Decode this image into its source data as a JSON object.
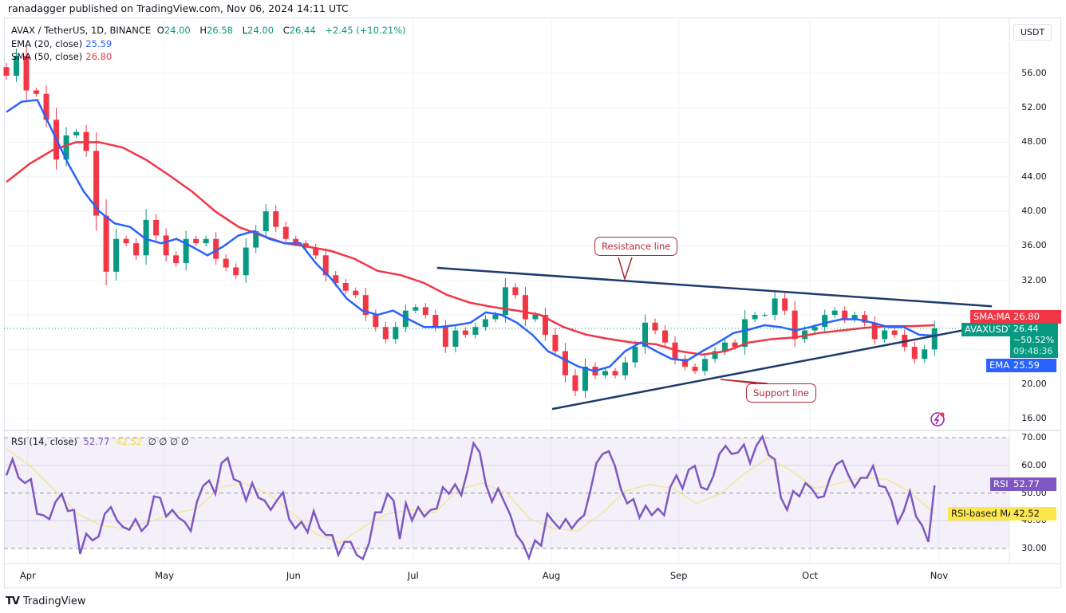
{
  "header": {
    "published": "ranadagger published on TradingView.com, Nov 06, 2024 14:11 UTC"
  },
  "legend": {
    "symbol": "AVAX / TetherUS, 1D, BINANCE",
    "o_label": "O",
    "o": "24.00",
    "h_label": "H",
    "h": "26.58",
    "l_label": "L",
    "l": "24.00",
    "c_label": "C",
    "c": "26.44",
    "change": "+2.45 (+10.21%)",
    "ema_label": "EMA (20, close)",
    "ema_value": "25.59",
    "sma_label": "SMA (50, close)",
    "sma_value": "26.80",
    "rsi_label": "RSI (14, close)",
    "rsi_value": "52.77",
    "rsi_ma_value": "42.52",
    "rsi_extra": "∅ ∅ ∅ ∅"
  },
  "currency_button": "USDT",
  "price_tags": {
    "sma_name": "SMA:MA",
    "sma_value": "26.80",
    "symbol_name": "AVAXUSDT",
    "last_price": "26.44",
    "pct": "−50.52%",
    "countdown": "09:48:36",
    "ema_name": "EMA",
    "ema_value": "25.59",
    "rsi_name": "RSI",
    "rsi_value": "52.77",
    "rsi_ma_name": "RSI-based MA",
    "rsi_ma_value": "42.52"
  },
  "annotations": {
    "resistance": "Resistance line",
    "support": "Support line"
  },
  "footer": {
    "brand": "TradingView"
  },
  "colors": {
    "up": "#089981",
    "down": "#f23645",
    "ema": "#2962ff",
    "sma": "#f23645",
    "rsi": "#7e57c2",
    "rsi_ma": "#f0e68c",
    "trendline": "#1e3a6e",
    "grid": "#f0f3fa"
  },
  "chart_data": {
    "type": "candlestick",
    "title": "AVAX / TetherUS, 1D, BINANCE",
    "x_domain_days": [
      0,
      243
    ],
    "last_candle_day": 225,
    "months": [
      {
        "label": "Apr",
        "day": 5.2
      },
      {
        "label": "May",
        "day": 38.3
      },
      {
        "label": "Jun",
        "day": 69.6
      },
      {
        "label": "Jul",
        "day": 98.6
      },
      {
        "label": "Aug",
        "day": 132.1
      },
      {
        "label": "Sep",
        "day": 163
      },
      {
        "label": "Oct",
        "day": 194.8
      },
      {
        "label": "Nov",
        "day": 226.1
      }
    ],
    "price_axis": {
      "ylim": [
        16,
        56
      ],
      "ticks": [
        "56.00",
        "52.00",
        "48.00",
        "44.00",
        "40.00",
        "36.00",
        "32.00",
        "20.00",
        "16.00"
      ],
      "grid": [
        16,
        20,
        24,
        28,
        32,
        36,
        40,
        44,
        48,
        52,
        56
      ]
    },
    "closes": [
      55.7,
      58,
      54,
      53.6,
      50.6,
      46,
      48.8,
      49.2,
      47,
      39.5,
      33,
      36.8,
      36.3,
      34.9,
      39,
      37.2,
      34.9,
      34,
      36.8,
      36.3,
      36.8,
      34.5,
      33.5,
      32.6,
      35.8,
      37.7,
      40,
      38.2,
      36.8,
      36.3,
      35.8,
      34.9,
      32.6,
      31.7,
      30.8,
      30.3,
      28,
      26.6,
      25.2,
      26.6,
      28.5,
      28.9,
      28,
      26.6,
      24.3,
      26.2,
      25.7,
      26.6,
      27.5,
      28,
      31.2,
      30.3,
      27.5,
      28,
      25.7,
      23.8,
      21,
      19.2,
      22,
      21,
      21.5,
      21,
      22.5,
      24.3,
      27.1,
      26.2,
      24.8,
      22.9,
      22,
      21.5,
      22.9,
      23.8,
      24.8,
      24.3,
      27.5,
      28,
      28,
      29.9,
      28.5,
      25.2,
      26.2,
      26.6,
      28,
      28.5,
      27.5,
      28,
      27.1,
      25.2,
      26.2,
      25.7,
      24.3,
      22.9,
      24.0,
      26.44
    ],
    "ema20": [
      51.5,
      52.7,
      52.9,
      49.2,
      45.5,
      42.3,
      40.0,
      38.6,
      38.2,
      36.8,
      36.3,
      36.8,
      35.9,
      34.9,
      35.9,
      37.2,
      37.7,
      36.8,
      36.3,
      36.3,
      34.0,
      32.2,
      29.9,
      28.5,
      28.0,
      28.5,
      27.5,
      26.6,
      26.6,
      26.8,
      27.1,
      28.3,
      28.0,
      27.1,
      25.7,
      23.8,
      22.9,
      22.0,
      21.5,
      22.0,
      23.8,
      24.8,
      23.8,
      22.9,
      22.7,
      23.8,
      24.8,
      25.9,
      26.3,
      26.8,
      26.6,
      26.2,
      26.6,
      27.1,
      27.5,
      27.5,
      27.1,
      26.6,
      26.6,
      25.7,
      25.59
    ],
    "sma50": [
      43.4,
      45.5,
      47.1,
      48.0,
      48.0,
      47.4,
      46.0,
      44.2,
      42.3,
      40.0,
      38.2,
      37.2,
      36.3,
      35.9,
      35.4,
      34.5,
      33.1,
      32.6,
      31.7,
      30.3,
      29.4,
      28.9,
      28.5,
      28.0,
      26.6,
      25.7,
      25.2,
      24.8,
      24.6,
      23.8,
      23.4,
      23.8,
      24.8,
      25.2,
      25.4,
      25.9,
      26.2,
      26.5,
      26.7,
      26.7,
      26.8
    ],
    "rsi_axis": {
      "ylim": [
        30,
        70
      ],
      "ticks": [
        "70.00",
        "60.00",
        "50.00",
        "40.00",
        "30.00"
      ],
      "band": [
        30,
        70
      ]
    },
    "rsi": [
      56.4,
      62.2,
      55.5,
      53.6,
      55,
      42.5,
      42,
      40.6,
      46.8,
      49.7,
      43.5,
      43.9,
      28,
      35.3,
      32.9,
      34.3,
      42.5,
      44.9,
      40.1,
      37.7,
      36.7,
      40.6,
      36.3,
      38.7,
      48.8,
      48.3,
      41.5,
      43.9,
      41.1,
      39.6,
      36.3,
      46.8,
      52.6,
      54.5,
      49.7,
      60.8,
      62.7,
      55,
      54,
      47.3,
      53.6,
      48.3,
      47.3,
      43.9,
      47.3,
      50.2,
      40.6,
      37.2,
      39.6,
      35.8,
      43.5,
      37.2,
      34.8,
      34.8,
      27.6,
      32.4,
      32.4,
      27.6,
      26.2,
      31.9,
      43,
      43,
      49.7,
      47.3,
      33.4,
      46.3,
      40.1,
      44.9,
      41.5,
      43.9,
      44.4,
      52.1,
      49.7,
      53.1,
      49.2,
      57.9,
      68,
      64.7,
      53.1,
      46.8,
      51.6,
      46.8,
      42,
      34.8,
      31.9,
      26.6,
      32.9,
      31,
      42.5,
      39.6,
      37.2,
      40.6,
      37.2,
      40.1,
      42,
      50.7,
      60.8,
      64.1,
      65.1,
      59.8,
      51.2,
      46.3,
      47.8,
      41.1,
      45.4,
      42,
      44.4,
      42,
      52.1,
      56.4,
      51.6,
      58.4,
      59.8,
      52.1,
      51.2,
      56,
      64.1,
      67,
      64.1,
      64.6,
      67.5,
      60.8,
      67,
      70.4,
      63.7,
      62.2,
      48.3,
      43.9,
      50.7,
      48.8,
      53.6,
      51.6,
      48.3,
      48.8,
      55.5,
      60.3,
      61.7,
      56.4,
      52.1,
      55.5,
      55.5,
      59.8,
      52.6,
      52.1,
      47.3,
      39.1,
      43.5,
      50.7,
      41.5,
      38.2,
      32.4,
      52.77
    ],
    "rsi_ma": [
      66,
      59.8,
      51.2,
      42.5,
      38.2,
      37.2,
      39.6,
      42.5,
      44.4,
      52.1,
      53.6,
      49.7,
      43,
      35.3,
      31.9,
      37.7,
      42.5,
      43.9,
      43,
      51.2,
      53.6,
      50.2,
      40.6,
      37.2,
      36.3,
      42.5,
      50.7,
      53.1,
      51.6,
      46.3,
      49.7,
      56.9,
      62.7,
      57.9,
      51.6,
      53.6,
      55.5,
      55,
      50.2,
      42.52
    ],
    "trendlines": [
      {
        "name": "Resistance line",
        "from": {
          "day": 104.4,
          "price": 33.45
        },
        "to": {
          "day": 238.9,
          "price": 29.0
        }
      },
      {
        "name": "Support line",
        "from": {
          "day": 132.3,
          "price": 17.1
        },
        "to": {
          "day": 238.3,
          "price": 26.8
        }
      }
    ]
  }
}
